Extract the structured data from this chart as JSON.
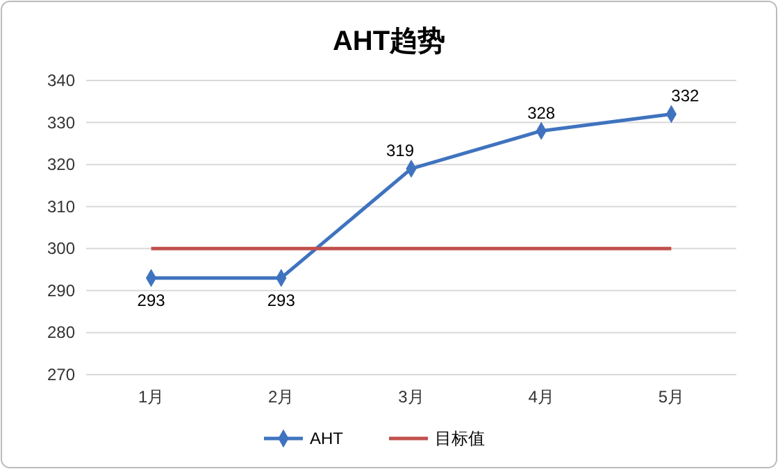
{
  "chart_data": {
    "type": "line",
    "title": "AHT趋势",
    "categories": [
      "1月",
      "2月",
      "3月",
      "4月",
      "5月"
    ],
    "series": [
      {
        "name": "AHT",
        "color": "#3f73bf",
        "values": [
          293,
          293,
          319,
          328,
          332
        ],
        "marker": "diamond",
        "value_labels": [
          "293",
          "293",
          "319",
          "328",
          "332"
        ]
      },
      {
        "name": "目标值",
        "color": "#c0504d",
        "values": [
          300,
          300,
          300,
          300,
          300
        ],
        "marker": "none"
      }
    ],
    "ylim": [
      270,
      340
    ],
    "yticks": [
      270,
      280,
      290,
      300,
      310,
      320,
      330,
      340
    ],
    "grid": "y",
    "legend": "bottom"
  }
}
